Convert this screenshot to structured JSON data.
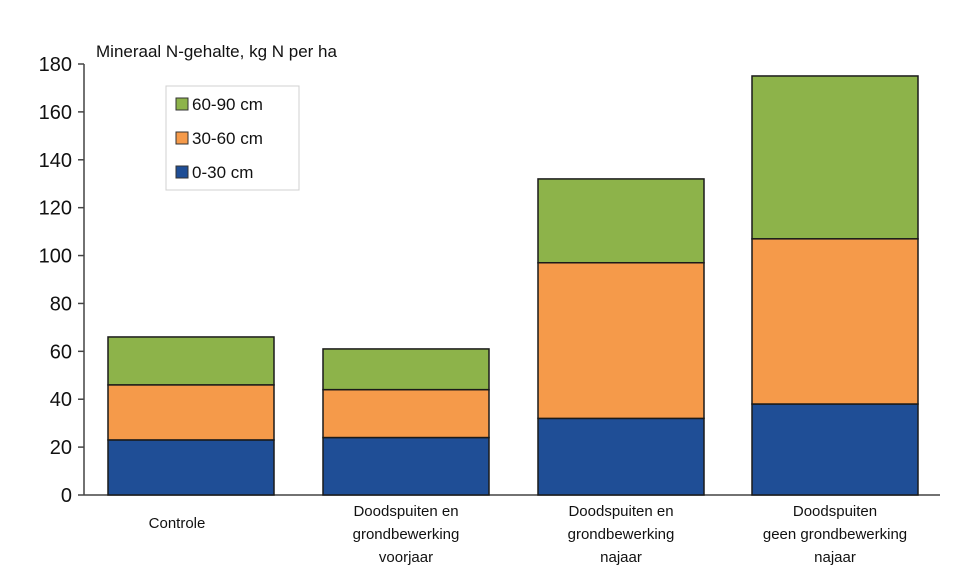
{
  "chart_data": {
    "type": "bar",
    "stacked": true,
    "ylabel": "Mineraal N-gehalte, kg N per ha",
    "ylim": [
      0,
      180
    ],
    "yticks": [
      0,
      20,
      40,
      60,
      80,
      100,
      120,
      140,
      160,
      180
    ],
    "categories": [
      [
        "Controle"
      ],
      [
        "Doodspuiten en",
        "grondbewerking",
        "voorjaar"
      ],
      [
        "Doodspuiten en",
        "grondbewerking",
        "najaar"
      ],
      [
        "Doodspuiten",
        "geen grondbewerking",
        "najaar"
      ]
    ],
    "series": [
      {
        "name": "0-30 cm",
        "color": "#1f4e96",
        "values": [
          23,
          24,
          32,
          38
        ]
      },
      {
        "name": "30-60 cm",
        "color": "#f59a4a",
        "values": [
          23,
          20,
          65,
          69
        ]
      },
      {
        "name": "60-90 cm",
        "color": "#8db34a",
        "values": [
          20,
          17,
          35,
          68
        ]
      }
    ],
    "legend": {
      "position": "top-left",
      "order": [
        "60-90 cm",
        "30-60 cm",
        "0-30 cm"
      ]
    },
    "grid": false
  }
}
